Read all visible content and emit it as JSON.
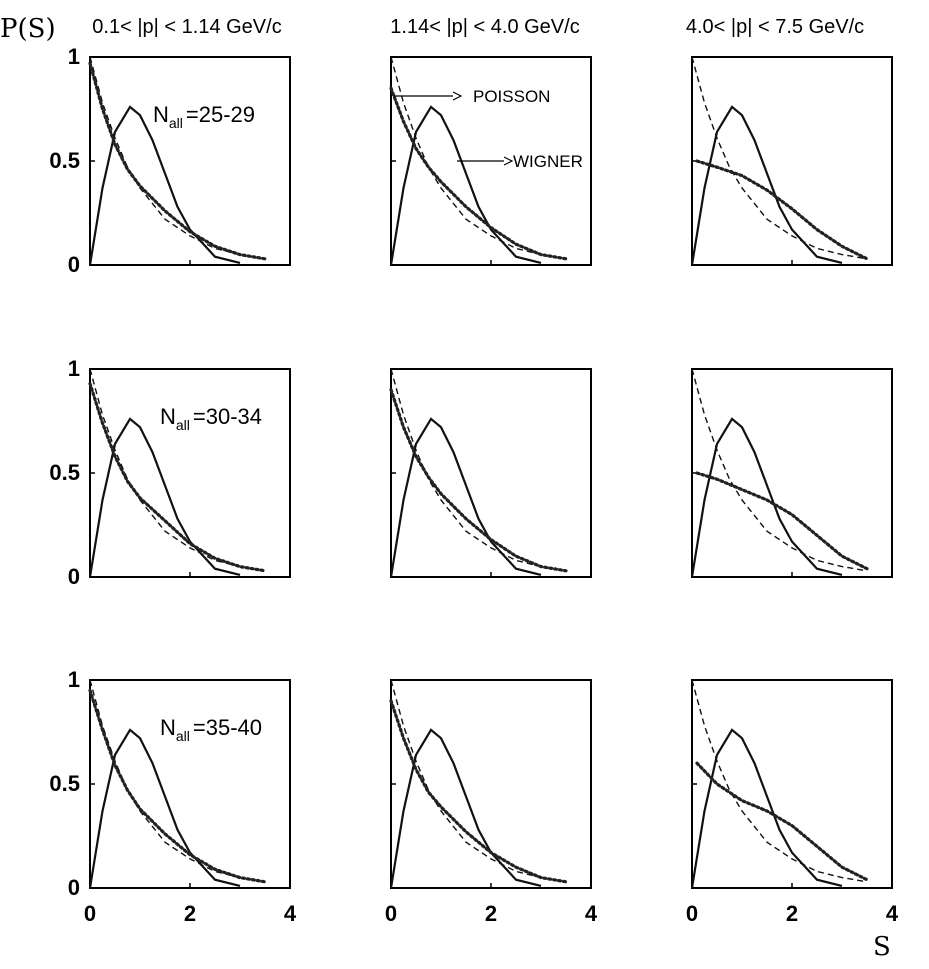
{
  "figure": {
    "ylabel": "P(S)",
    "xlabel": "S",
    "column_titles": [
      "0.1< |p| < 1.14 GeV/c",
      "1.14< |p| < 4.0 GeV/c",
      "4.0< |p| < 7.5 GeV/c"
    ],
    "row_labels": [
      {
        "main": "N",
        "sub": "all",
        "value": "=25-29"
      },
      {
        "main": "N",
        "sub": "all",
        "value": "=30-34"
      },
      {
        "main": "N",
        "sub": "all",
        "value": "=35-40"
      }
    ],
    "annotations": {
      "poisson": "POISSON",
      "wigner": "WIGNER"
    },
    "yticks": [
      "0",
      "0.5",
      "1"
    ],
    "xticks": [
      "0",
      "2",
      "4"
    ]
  },
  "chart_data": {
    "type": "line",
    "layout": "3x3 grid of small multiples",
    "xlim": [
      0,
      4
    ],
    "ylim": [
      0,
      1
    ],
    "grid": false,
    "reference_curves": [
      {
        "name": "POISSON",
        "style": "dashed",
        "x": [
          0,
          0.25,
          0.5,
          0.75,
          1.0,
          1.5,
          2.0,
          2.5,
          3.0,
          3.5
        ],
        "y": [
          1.0,
          0.78,
          0.61,
          0.47,
          0.37,
          0.22,
          0.14,
          0.08,
          0.05,
          0.03
        ]
      },
      {
        "name": "WIGNER",
        "style": "solid",
        "x": [
          0,
          0.25,
          0.5,
          0.8,
          1.0,
          1.25,
          1.5,
          1.75,
          2.0,
          2.5,
          3.0
        ],
        "y": [
          0,
          0.37,
          0.64,
          0.76,
          0.72,
          0.6,
          0.44,
          0.28,
          0.17,
          0.04,
          0.01
        ]
      }
    ],
    "panels": [
      {
        "row": 0,
        "col": 0,
        "data": {
          "x": [
            0,
            0.25,
            0.5,
            0.75,
            1.0,
            1.5,
            2.0,
            2.5,
            3.0,
            3.5
          ],
          "y": [
            0.97,
            0.75,
            0.58,
            0.46,
            0.38,
            0.26,
            0.16,
            0.09,
            0.05,
            0.03
          ]
        }
      },
      {
        "row": 0,
        "col": 1,
        "data": {
          "x": [
            0,
            0.25,
            0.5,
            0.75,
            1.0,
            1.5,
            2.0,
            2.5,
            3.0,
            3.5
          ],
          "y": [
            0.85,
            0.69,
            0.56,
            0.47,
            0.4,
            0.28,
            0.18,
            0.1,
            0.05,
            0.03
          ]
        }
      },
      {
        "row": 0,
        "col": 2,
        "data": {
          "x": [
            0.1,
            0.5,
            1.0,
            1.5,
            2.0,
            2.5,
            3.0,
            3.5
          ],
          "y": [
            0.5,
            0.47,
            0.43,
            0.36,
            0.27,
            0.17,
            0.09,
            0.03
          ]
        }
      },
      {
        "row": 1,
        "col": 0,
        "data": {
          "x": [
            0,
            0.25,
            0.5,
            0.75,
            1.0,
            1.5,
            2.0,
            2.5,
            3.0,
            3.5
          ],
          "y": [
            0.93,
            0.74,
            0.58,
            0.46,
            0.38,
            0.27,
            0.16,
            0.09,
            0.05,
            0.03
          ]
        }
      },
      {
        "row": 1,
        "col": 1,
        "data": {
          "x": [
            0,
            0.25,
            0.5,
            0.75,
            1.0,
            1.5,
            2.0,
            2.5,
            3.0,
            3.5
          ],
          "y": [
            0.9,
            0.72,
            0.58,
            0.48,
            0.4,
            0.28,
            0.18,
            0.1,
            0.05,
            0.03
          ]
        }
      },
      {
        "row": 1,
        "col": 2,
        "data": {
          "x": [
            0.1,
            0.5,
            1.0,
            1.5,
            2.0,
            2.5,
            3.0,
            3.5
          ],
          "y": [
            0.5,
            0.47,
            0.42,
            0.37,
            0.3,
            0.2,
            0.1,
            0.04
          ]
        }
      },
      {
        "row": 2,
        "col": 0,
        "data": {
          "x": [
            0,
            0.25,
            0.5,
            0.75,
            1.0,
            1.5,
            2.0,
            2.5,
            3.0,
            3.5
          ],
          "y": [
            0.95,
            0.76,
            0.59,
            0.47,
            0.38,
            0.26,
            0.16,
            0.09,
            0.05,
            0.03
          ]
        }
      },
      {
        "row": 2,
        "col": 1,
        "data": {
          "x": [
            0,
            0.25,
            0.5,
            0.75,
            1.0,
            1.5,
            2.0,
            2.5,
            3.0,
            3.5
          ],
          "y": [
            0.9,
            0.72,
            0.57,
            0.46,
            0.39,
            0.27,
            0.17,
            0.1,
            0.05,
            0.03
          ]
        }
      },
      {
        "row": 2,
        "col": 2,
        "data": {
          "x": [
            0.1,
            0.5,
            1.0,
            1.5,
            2.0,
            2.5,
            3.0,
            3.5
          ],
          "y": [
            0.6,
            0.5,
            0.42,
            0.37,
            0.3,
            0.2,
            0.1,
            0.04
          ]
        }
      }
    ]
  }
}
